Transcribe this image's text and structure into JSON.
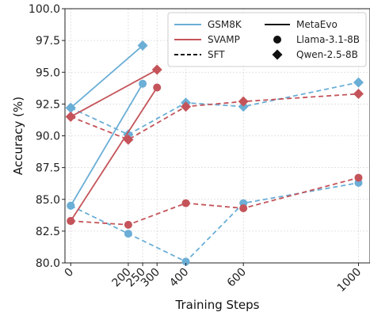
{
  "chart_data": {
    "type": "line",
    "title": "",
    "xlabel": "Training Steps",
    "ylabel": "Accuracy (%)",
    "xlim": [
      -20,
      1040
    ],
    "ylim": [
      80.0,
      100.0
    ],
    "x_ticks": [
      0,
      200,
      250,
      300,
      400,
      600,
      1000
    ],
    "x_tick_labels": [
      "0",
      "200",
      "250",
      "300",
      "400",
      "600",
      "1000"
    ],
    "y_ticks": [
      80.0,
      82.5,
      85.0,
      87.5,
      90.0,
      92.5,
      95.0,
      97.5,
      100.0
    ],
    "y_tick_labels": [
      "80.0",
      "82.5",
      "85.0",
      "87.5",
      "90.0",
      "92.5",
      "95.0",
      "97.5",
      "100.0"
    ],
    "grid": true,
    "legend_position": "top-right",
    "legend": {
      "datasets": [
        {
          "label": "GSM8K",
          "color": "#6baed6"
        },
        {
          "label": "SVAMP",
          "color": "#c4545a"
        }
      ],
      "line_styles": [
        {
          "label": "SFT",
          "style": "dashed"
        },
        {
          "label": "MetaEvo",
          "style": "solid"
        }
      ],
      "markers": [
        {
          "label": "Llama-3.1-8B",
          "marker": "circle"
        },
        {
          "label": "Qwen-2.5-8B",
          "marker": "diamond"
        }
      ]
    },
    "series": [
      {
        "dataset": "GSM8K",
        "method": "SFT",
        "model": "Qwen-2.5-8B",
        "color": "#6baed6",
        "style": "dashed",
        "marker": "diamond",
        "x": [
          0,
          200,
          400,
          600,
          1000
        ],
        "y": [
          92.2,
          90.1,
          92.6,
          92.3,
          94.2
        ]
      },
      {
        "dataset": "SVAMP",
        "method": "SFT",
        "model": "Qwen-2.5-8B",
        "color": "#c4545a",
        "style": "dashed",
        "marker": "diamond",
        "x": [
          0,
          200,
          400,
          600,
          1000
        ],
        "y": [
          91.5,
          89.7,
          92.3,
          92.7,
          93.3
        ]
      },
      {
        "dataset": "GSM8K",
        "method": "SFT",
        "model": "Llama-3.1-8B",
        "color": "#6baed6",
        "style": "dashed",
        "marker": "circle",
        "x": [
          0,
          200,
          400,
          600,
          1000
        ],
        "y": [
          84.5,
          82.3,
          80.1,
          84.7,
          86.3
        ]
      },
      {
        "dataset": "SVAMP",
        "method": "SFT",
        "model": "Llama-3.1-8B",
        "color": "#c4545a",
        "style": "dashed",
        "marker": "circle",
        "x": [
          0,
          200,
          400,
          600,
          1000
        ],
        "y": [
          83.3,
          83.0,
          84.7,
          84.3,
          86.7
        ]
      },
      {
        "dataset": "GSM8K",
        "method": "MetaEvo",
        "model": "Qwen-2.5-8B",
        "color": "#6baed6",
        "style": "solid",
        "marker": "diamond",
        "x": [
          0,
          250
        ],
        "y": [
          92.2,
          97.1
        ]
      },
      {
        "dataset": "SVAMP",
        "method": "MetaEvo",
        "model": "Qwen-2.5-8B",
        "color": "#c4545a",
        "style": "solid",
        "marker": "diamond",
        "x": [
          0,
          300
        ],
        "y": [
          91.5,
          95.2
        ]
      },
      {
        "dataset": "GSM8K",
        "method": "MetaEvo",
        "model": "Llama-3.1-8B",
        "color": "#6baed6",
        "style": "solid",
        "marker": "circle",
        "x": [
          0,
          250
        ],
        "y": [
          84.5,
          94.1
        ]
      },
      {
        "dataset": "SVAMP",
        "method": "MetaEvo",
        "model": "Llama-3.1-8B",
        "color": "#c4545a",
        "style": "solid",
        "marker": "circle",
        "x": [
          0,
          300
        ],
        "y": [
          83.3,
          93.8
        ]
      }
    ]
  }
}
